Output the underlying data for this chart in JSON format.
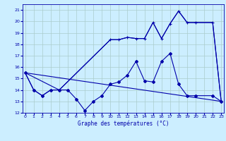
{
  "xlabel": "Graphe des températures (°C)",
  "ylim": [
    12,
    21.5
  ],
  "xlim": [
    -0.3,
    23.3
  ],
  "yticks": [
    12,
    13,
    14,
    15,
    16,
    17,
    18,
    19,
    20,
    21
  ],
  "xticks": [
    0,
    1,
    2,
    3,
    4,
    5,
    6,
    7,
    8,
    9,
    10,
    11,
    12,
    13,
    14,
    15,
    16,
    17,
    18,
    19,
    20,
    21,
    22,
    23
  ],
  "background_color": "#cceeff",
  "line_color": "#0000aa",
  "grid_color": "#aacccc",
  "series1_x": [
    0,
    1,
    2,
    3,
    4,
    5,
    6,
    7,
    8,
    9,
    10,
    11,
    12,
    13,
    14,
    15,
    16,
    17,
    18,
    19,
    20,
    22,
    23
  ],
  "series1_y": [
    15.5,
    14.0,
    13.5,
    14.0,
    14.0,
    14.0,
    13.2,
    12.2,
    13.0,
    13.5,
    14.5,
    14.7,
    15.3,
    16.5,
    14.8,
    14.7,
    16.5,
    17.2,
    14.5,
    13.5,
    13.5,
    13.5,
    13.0
  ],
  "series2_x": [
    0,
    1,
    2,
    3,
    4,
    10,
    11,
    12,
    13,
    14,
    15,
    16,
    17,
    18,
    19,
    20,
    22,
    23
  ],
  "series2_y": [
    15.5,
    14.0,
    13.5,
    14.0,
    14.0,
    18.4,
    18.4,
    18.6,
    18.5,
    18.5,
    19.9,
    18.5,
    19.8,
    20.9,
    19.9,
    19.9,
    19.9,
    13.0
  ],
  "series3_x": [
    0,
    23
  ],
  "series3_y": [
    15.5,
    13.0
  ],
  "series4_x": [
    0,
    4,
    10,
    11,
    12,
    13,
    14,
    15,
    16,
    17,
    18,
    19,
    20,
    22,
    23
  ],
  "series4_y": [
    15.5,
    14.0,
    18.4,
    18.4,
    18.6,
    18.5,
    18.5,
    19.9,
    18.5,
    19.8,
    20.9,
    19.9,
    19.9,
    19.9,
    13.0
  ]
}
